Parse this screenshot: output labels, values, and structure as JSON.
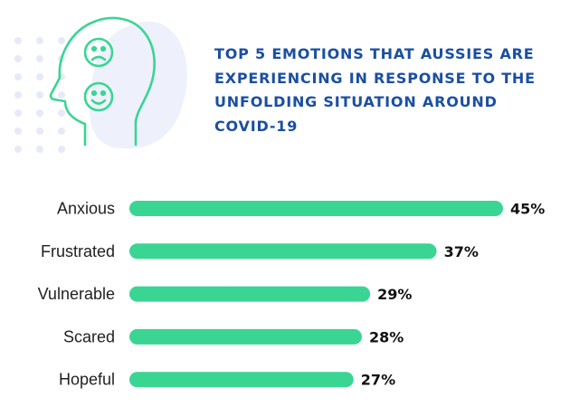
{
  "chart_data": {
    "type": "bar",
    "orientation": "horizontal",
    "title": "TOP 5 EMOTIONS THAT AUSSIES ARE EXPERIENCING IN RESPONSE TO THE UNFOLDING SITUATION AROUND COVID-19",
    "categories": [
      "Anxious",
      "Frustrated",
      "Vulnerable",
      "Scared",
      "Hopeful"
    ],
    "values": [
      45,
      37,
      29,
      28,
      27
    ],
    "value_labels": [
      "45%",
      "37%",
      "29%",
      "28%",
      "27%"
    ],
    "unit": "%",
    "xlim": [
      0,
      45
    ],
    "grid": false,
    "legend": "none"
  },
  "colors": {
    "bar": "#3ad593",
    "title": "#1b4fa1",
    "icon_outline": "#3ad593",
    "icon_blob": "#eef1fb",
    "dots": "#e6eaf7"
  },
  "header": {
    "icon": "head-emotions-icon"
  }
}
